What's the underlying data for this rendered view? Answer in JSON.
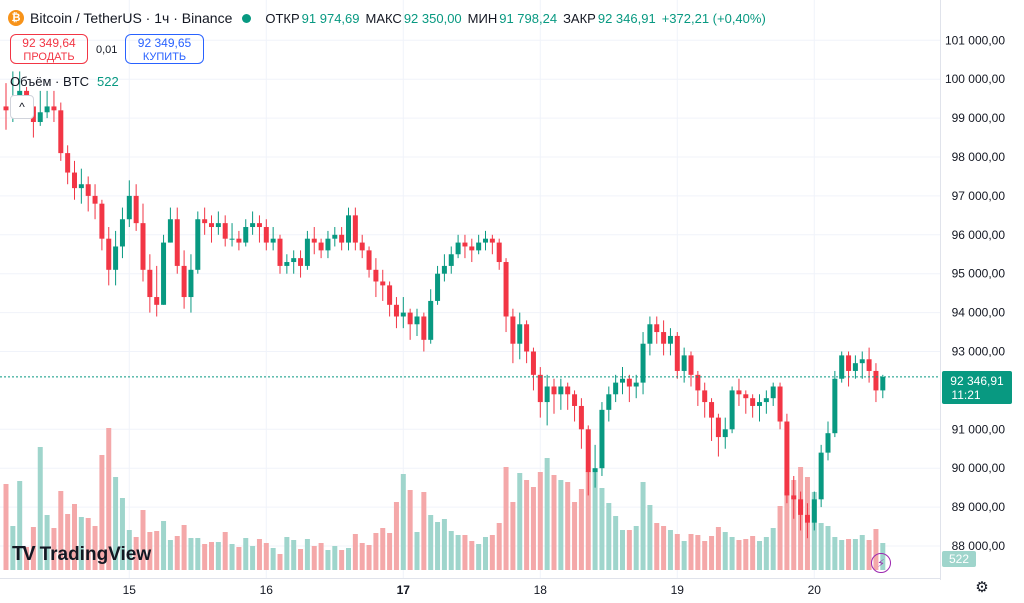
{
  "header": {
    "symbol": "Bitcoin / TetherUS · 1ч · Binance",
    "coin_icon": "bitcoin-icon",
    "status_dot_color": "#089981",
    "open_label": "ОТКР",
    "open_value": "91 974,69",
    "high_label": "МАКС",
    "high_value": "92 350,00",
    "low_label": "МИН",
    "low_value": "91 798,24",
    "close_label": "ЗАКР",
    "close_value": "92 346,91",
    "change": "+372,21 (+0,40%)"
  },
  "trade": {
    "sell_price": "92 349,64",
    "sell_label": "ПРОДАТЬ",
    "spread": "0,01",
    "buy_price": "92 349,65",
    "buy_label": "КУПИТЬ"
  },
  "volume": {
    "label": "Объём · BTC",
    "value": "522"
  },
  "logo": {
    "text": "TradingView",
    "icon": "tradingview-logo-icon"
  },
  "colors": {
    "up": "#089981",
    "down": "#f23645",
    "up_vol": "#9fd5cc",
    "down_vol": "#f4a8a9"
  },
  "chart_data": {
    "type": "candlestick",
    "timeframe": "1ч",
    "yaxis_ticks": [
      "101 000,00",
      "100 000,00",
      "99 000,00",
      "98 000,00",
      "97 000,00",
      "96 000,00",
      "95 000,00",
      "94 000,00",
      "93 000,00",
      "91 000,00",
      "90 000,00",
      "89 000,00",
      "88 000,00"
    ],
    "yaxis_tick_values": [
      101000,
      100000,
      99000,
      98000,
      97000,
      96000,
      95000,
      94000,
      93000,
      91000,
      90000,
      89000,
      88000
    ],
    "xaxis_ticks": [
      {
        "label": "15",
        "bold": false,
        "candle_index": 18
      },
      {
        "label": "16",
        "bold": false,
        "candle_index": 38
      },
      {
        "label": "17",
        "bold": true,
        "candle_index": 58
      },
      {
        "label": "18",
        "bold": false,
        "candle_index": 78
      },
      {
        "label": "19",
        "bold": false,
        "candle_index": 98
      },
      {
        "label": "20",
        "bold": false,
        "candle_index": 118
      }
    ],
    "last_price_label": "92 346,91",
    "last_price_value": 92346.91,
    "countdown": "11:21",
    "volume_label": "522",
    "ylim": [
      87700,
      101400
    ],
    "open_first": 99300,
    "closes": [
      99200,
      99500,
      99700,
      99300,
      98900,
      99150,
      99300,
      99200,
      98100,
      97600,
      97200,
      97300,
      97000,
      96800,
      95900,
      95100,
      95700,
      96400,
      97000,
      96300,
      95100,
      94400,
      94200,
      95800,
      96400,
      95200,
      94400,
      95100,
      96400,
      96300,
      96200,
      96300,
      95900,
      95900,
      95800,
      96200,
      96300,
      96200,
      95800,
      95900,
      95200,
      95300,
      95400,
      95200,
      95900,
      95800,
      95600,
      95900,
      96000,
      95800,
      96500,
      95800,
      95600,
      95100,
      94800,
      94700,
      94200,
      93900,
      94000,
      93700,
      93900,
      93300,
      94300,
      95000,
      95200,
      95500,
      95800,
      95700,
      95600,
      95800,
      95900,
      95800,
      95300,
      93900,
      93200,
      93700,
      93000,
      92400,
      91700,
      92100,
      91900,
      92100,
      91900,
      91600,
      91000,
      89900,
      90000,
      91500,
      91900,
      92200,
      92300,
      92100,
      92200,
      93200,
      93700,
      93500,
      93200,
      93400,
      92500,
      92900,
      92400,
      92000,
      91700,
      91300,
      90800,
      91000,
      92000,
      91900,
      91800,
      91600,
      91700,
      91800,
      92100,
      91200,
      89300,
      89200,
      88800,
      88600,
      89200,
      90400,
      90900,
      92300,
      92900,
      92500,
      92700,
      92800,
      92500,
      92000,
      92346.91
    ],
    "highs": [
      99900,
      100200,
      100200,
      99800,
      99300,
      99700,
      99700,
      99700,
      99400,
      98300,
      97900,
      97700,
      97500,
      97300,
      96900,
      96200,
      96100,
      96700,
      97400,
      97300,
      96800,
      95500,
      95200,
      96000,
      96700,
      96700,
      95600,
      95500,
      96600,
      96700,
      96500,
      96600,
      96500,
      96300,
      96100,
      96400,
      96600,
      96500,
      96400,
      96200,
      96000,
      95500,
      95600,
      95600,
      96100,
      96200,
      95900,
      96100,
      96200,
      96200,
      96700,
      96700,
      96000,
      95700,
      95400,
      95100,
      94800,
      94400,
      94400,
      94100,
      94100,
      94000,
      94600,
      95200,
      95500,
      95700,
      96000,
      96000,
      95900,
      96000,
      96100,
      96000,
      95900,
      95400,
      94100,
      94000,
      93800,
      93100,
      92600,
      92400,
      92300,
      92300,
      92200,
      92000,
      91800,
      91100,
      90600,
      91700,
      92100,
      92400,
      92600,
      92400,
      92400,
      93500,
      93900,
      93900,
      93800,
      93600,
      93500,
      93100,
      93000,
      92500,
      92200,
      91800,
      91400,
      91300,
      92100,
      92300,
      92000,
      91900,
      91900,
      92000,
      92200,
      92200,
      91400,
      89800,
      89400,
      89100,
      89400,
      90600,
      91200,
      92500,
      93000,
      93000,
      92900,
      93000,
      93100,
      92700,
      92400
    ],
    "lows": [
      98700,
      98900,
      99300,
      99000,
      98500,
      98800,
      99000,
      98900,
      97900,
      97300,
      96900,
      96800,
      96600,
      96400,
      95600,
      94700,
      94700,
      95400,
      96200,
      96100,
      94800,
      94000,
      93900,
      94200,
      95800,
      95000,
      94100,
      94000,
      95000,
      96000,
      95800,
      96000,
      95700,
      95700,
      95600,
      95700,
      96000,
      95800,
      95600,
      95600,
      95000,
      95000,
      95000,
      94900,
      95100,
      95500,
      95400,
      95400,
      95700,
      95600,
      95600,
      95600,
      95400,
      94900,
      94400,
      94300,
      93900,
      93600,
      93600,
      93300,
      93400,
      93000,
      93200,
      94200,
      94800,
      95000,
      95400,
      95400,
      95300,
      95500,
      95600,
      95500,
      95100,
      93500,
      92700,
      92800,
      92700,
      92000,
      91300,
      91100,
      91400,
      91500,
      91500,
      91200,
      90500,
      89300,
      89500,
      89800,
      91200,
      91700,
      91900,
      91700,
      91800,
      91900,
      92900,
      93200,
      92900,
      92900,
      92300,
      92200,
      92100,
      91600,
      91300,
      90700,
      90300,
      90500,
      90900,
      91600,
      91400,
      91300,
      91200,
      91400,
      91600,
      91000,
      89100,
      88700,
      88400,
      88200,
      88400,
      89000,
      90200,
      90800,
      92200,
      92100,
      92300,
      92300,
      92200,
      91700,
      91800
    ],
    "volumes": [
      8.6,
      4.4,
      8.9,
      2.3,
      4.3,
      12.3,
      5.5,
      4.2,
      7.9,
      5.6,
      6.6,
      5.3,
      5.2,
      4.4,
      11.5,
      14.2,
      9.3,
      7.2,
      4.0,
      3.3,
      6.0,
      3.8,
      3.9,
      4.9,
      3.0,
      3.4,
      4.5,
      3.2,
      3.2,
      2.6,
      2.8,
      2.8,
      3.8,
      2.6,
      2.3,
      3.2,
      2.4,
      3.1,
      2.7,
      2.2,
      1.6,
      3.3,
      3.0,
      2.1,
      3.1,
      2.4,
      2.7,
      2.0,
      2.4,
      2.0,
      2.2,
      3.6,
      2.7,
      2.5,
      3.7,
      4.2,
      3.7,
      6.8,
      9.6,
      8.0,
      3.8,
      7.8,
      5.5,
      4.8,
      5.1,
      3.9,
      3.5,
      3.5,
      2.9,
      2.6,
      3.3,
      3.5,
      4.7,
      10.3,
      6.8,
      9.7,
      9.0,
      8.3,
      9.8,
      11.2,
      9.5,
      9.0,
      8.8,
      6.8,
      8.1,
      9.9,
      10.1,
      8.2,
      6.7,
      5.4,
      4.0,
      4.0,
      4.4,
      8.8,
      6.5,
      4.7,
      4.4,
      4.0,
      3.6,
      2.9,
      3.6,
      3.5,
      2.9,
      3.4,
      4.3,
      3.8,
      3.3,
      3.0,
      3.1,
      3.4,
      2.9,
      3.3,
      4.2,
      6.4,
      7.8,
      9.0,
      10.3,
      9.3,
      7.8,
      4.7,
      4.4,
      3.3,
      3.0,
      3.1,
      3.1,
      3.5,
      3.0,
      4.1,
      2.7
    ]
  }
}
